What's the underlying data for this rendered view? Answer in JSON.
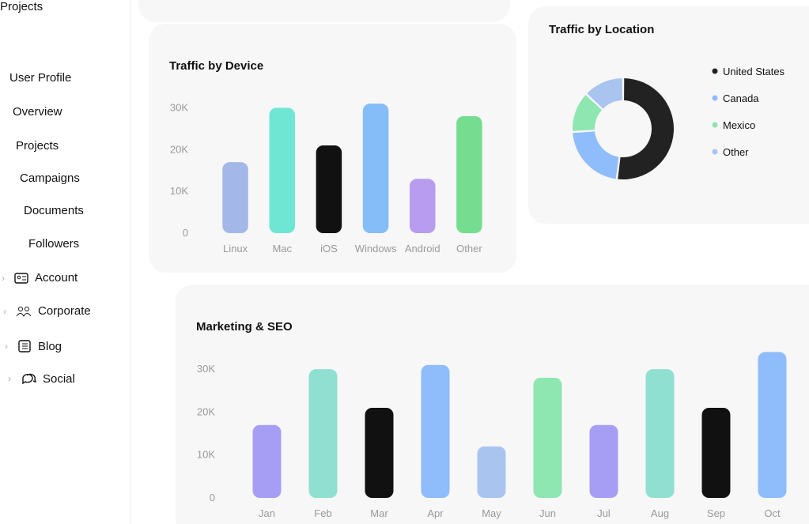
{
  "sidebar": {
    "items": [
      "Projects",
      "User Profile",
      "Overview",
      "Projects",
      "Campaigns",
      "Documents",
      "Followers",
      "Account",
      "Corporate",
      "Blog",
      "Social"
    ]
  },
  "chart_data": [
    {
      "type": "bar",
      "title": "Traffic by Device",
      "categories": [
        "Linux",
        "Mac",
        "iOS",
        "Windows",
        "Android",
        "Other"
      ],
      "values": [
        17000,
        30000,
        21000,
        31000,
        13000,
        28000
      ],
      "colors": [
        "#a3b8e8",
        "#6ee6d3",
        "#111111",
        "#85bdf9",
        "#b79cef",
        "#74dd8f"
      ],
      "ylim": [
        0,
        35000
      ],
      "yticks": [
        {
          "value": 0,
          "label": "0"
        },
        {
          "value": 10000,
          "label": "10K"
        },
        {
          "value": 20000,
          "label": "20K"
        },
        {
          "value": 30000,
          "label": "30K"
        }
      ]
    },
    {
      "type": "pie",
      "title": "Traffic by Location",
      "categories": [
        "United States",
        "Canada",
        "Mexico",
        "Other"
      ],
      "values": [
        52,
        22,
        13,
        13
      ],
      "colors": [
        "#222222",
        "#8fbcfa",
        "#8ee6b0",
        "#a9c4ef"
      ]
    },
    {
      "type": "bar",
      "title": "Marketing & SEO",
      "categories": [
        "Jan",
        "Feb",
        "Mar",
        "Apr",
        "May",
        "Jun",
        "Jul",
        "Aug",
        "Sep",
        "Oct"
      ],
      "values": [
        17000,
        30000,
        21000,
        31000,
        12000,
        28000,
        17000,
        30000,
        21000,
        34000
      ],
      "colors": [
        "#a59ef4",
        "#8fe0d0",
        "#111111",
        "#8fbcfa",
        "#a9c4ef",
        "#8ee6b0",
        "#a59ef4",
        "#8fe0d0",
        "#111111",
        "#8fbcfa"
      ],
      "ylim": [
        0,
        35000
      ],
      "yticks": [
        {
          "value": 0,
          "label": "0"
        },
        {
          "value": 10000,
          "label": "10K"
        },
        {
          "value": 20000,
          "label": "20K"
        },
        {
          "value": 30000,
          "label": "30K"
        }
      ]
    }
  ]
}
